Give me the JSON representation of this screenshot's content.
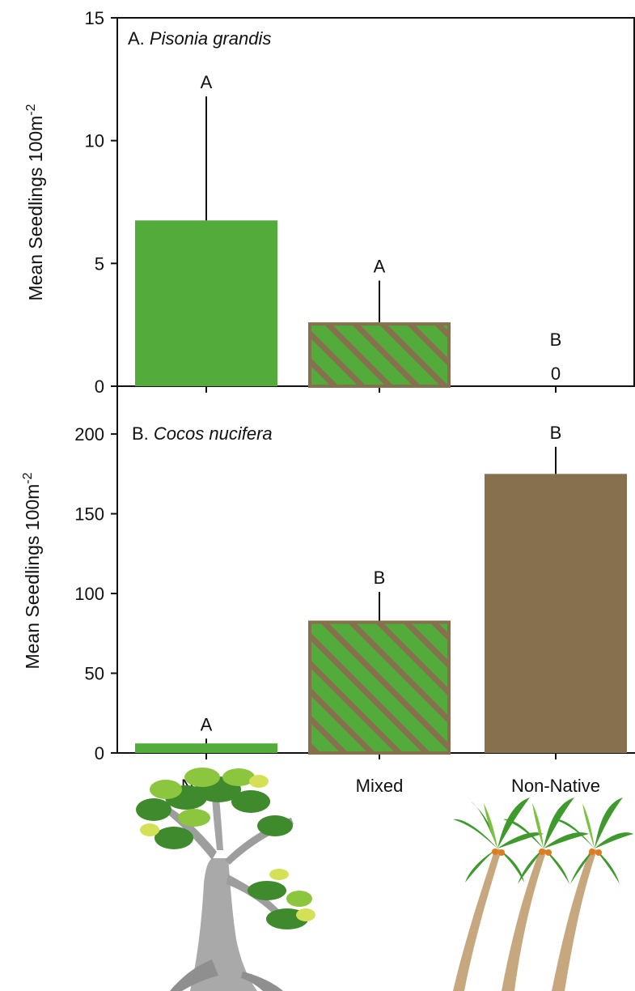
{
  "chart_data": [
    {
      "type": "bar",
      "panel_label": "A.",
      "title": "Pisonia grandis",
      "ylabel": "Mean Seedlings 100m",
      "ylabel_superscript": "-2",
      "ylim": [
        0,
        15
      ],
      "yticks": [
        "0",
        "5",
        "10",
        "15"
      ],
      "categories": [
        "Native",
        "Mixed",
        "Non-Native"
      ],
      "values": [
        6.75,
        2.6,
        0
      ],
      "errors": [
        5.05,
        1.7,
        0
      ],
      "significance": [
        "A",
        "A",
        "B"
      ],
      "value_labels": [
        "",
        "",
        "0"
      ],
      "bar_styles": [
        "native",
        "mixed",
        "nonnative"
      ]
    },
    {
      "type": "bar",
      "panel_label": "B.",
      "title": "Cocos nucifera",
      "ylabel": "Mean Seedlings 100m",
      "ylabel_superscript": "-2",
      "ylim": [
        0,
        230
      ],
      "yticks": [
        "0",
        "50",
        "100",
        "150",
        "200"
      ],
      "categories": [
        "Native",
        "Mixed",
        "Non-Native"
      ],
      "values": [
        6,
        83,
        175
      ],
      "errors": [
        3,
        18,
        17
      ],
      "significance": [
        "A",
        "B",
        "B"
      ],
      "bar_styles": [
        "native",
        "mixed",
        "nonnative"
      ]
    }
  ],
  "colors": {
    "native": "#52ab3b",
    "nonnative": "#86704d",
    "mixed_fill": "#52ab3b",
    "mixed_stripe": "#86704d",
    "axis": "#111111"
  },
  "icons": [
    "pisonia-tree-icon",
    "coconut-palms-icon"
  ]
}
